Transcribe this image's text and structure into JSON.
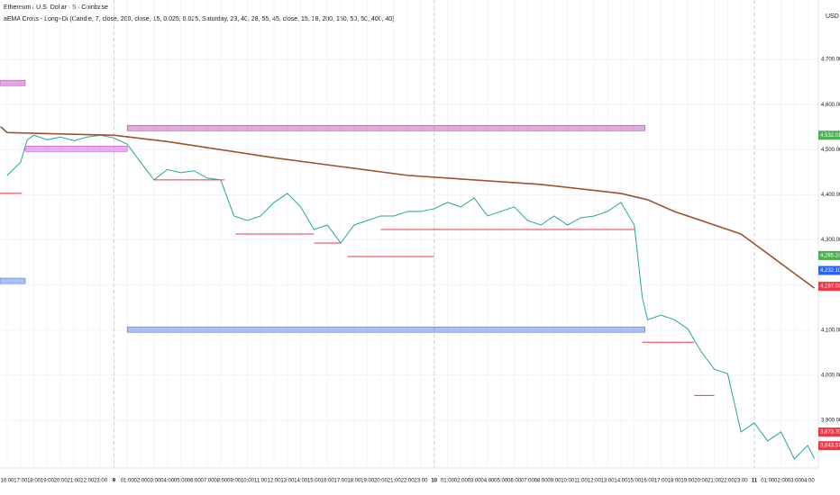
{
  "chart_data": {
    "type": "line",
    "title": "Ethereum / U.S. Dollar · 5 · Coinbase",
    "subtitle": "aEMA Cross - Long+Di (Candle, 7, close, 200, close, 15, 0.025, 0.025, Saturday, 23, 40, 28, 55, 45, close, 15, 18, 200, 150, 50, 50, 400, 40)",
    "currency": "USD",
    "grid": true,
    "xlim": [
      -0.54,
      60.8
    ],
    "ylim": [
      3794,
      4832
    ],
    "yticks": [
      {
        "value": 3900,
        "label": "3,900.00"
      },
      {
        "value": 4000,
        "label": "4,000.00"
      },
      {
        "value": 4100,
        "label": "4,100.00"
      },
      {
        "value": 4200,
        "label": "4,200.00"
      },
      {
        "value": 4300,
        "label": "4,300.00"
      },
      {
        "value": 4400,
        "label": "4,400.00"
      },
      {
        "value": 4500,
        "label": "4,500.00"
      },
      {
        "value": 4600,
        "label": "4,600.00"
      },
      {
        "value": 4700,
        "label": "4,700.00"
      }
    ],
    "xticks": [
      {
        "value": 0,
        "label": "16:00"
      },
      {
        "value": 1,
        "label": "17:00"
      },
      {
        "value": 2,
        "label": "18:00"
      },
      {
        "value": 3,
        "label": "19:00"
      },
      {
        "value": 4,
        "label": "20:00"
      },
      {
        "value": 5,
        "label": "21:00"
      },
      {
        "value": 6,
        "label": "22:00"
      },
      {
        "value": 7,
        "label": "23:00"
      },
      {
        "value": 8,
        "label": "9"
      },
      {
        "value": 9,
        "label": "01:00"
      },
      {
        "value": 10,
        "label": "02:00"
      },
      {
        "value": 11,
        "label": "03:00"
      },
      {
        "value": 12,
        "label": "04:00"
      },
      {
        "value": 13,
        "label": "05:00"
      },
      {
        "value": 14,
        "label": "06:00"
      },
      {
        "value": 15,
        "label": "07:00"
      },
      {
        "value": 16,
        "label": "08:00"
      },
      {
        "value": 17,
        "label": "09:00"
      },
      {
        "value": 18,
        "label": "10:00"
      },
      {
        "value": 19,
        "label": "11:00"
      },
      {
        "value": 20,
        "label": "12:00"
      },
      {
        "value": 21,
        "label": "13:00"
      },
      {
        "value": 22,
        "label": "14:00"
      },
      {
        "value": 23,
        "label": "15:00"
      },
      {
        "value": 24,
        "label": "16:00"
      },
      {
        "value": 25,
        "label": "17:00"
      },
      {
        "value": 26,
        "label": "18:00"
      },
      {
        "value": 27,
        "label": "19:00"
      },
      {
        "value": 28,
        "label": "20:00"
      },
      {
        "value": 29,
        "label": "21:00"
      },
      {
        "value": 30,
        "label": "22:00"
      },
      {
        "value": 31,
        "label": "23:00"
      },
      {
        "value": 32,
        "label": "10"
      },
      {
        "value": 33,
        "label": "01:00"
      },
      {
        "value": 34,
        "label": "02:00"
      },
      {
        "value": 35,
        "label": "03:00"
      },
      {
        "value": 36,
        "label": "04:00"
      },
      {
        "value": 37,
        "label": "05:00"
      },
      {
        "value": 38,
        "label": "06:00"
      },
      {
        "value": 39,
        "label": "07:00"
      },
      {
        "value": 40,
        "label": "08:00"
      },
      {
        "value": 41,
        "label": "09:00"
      },
      {
        "value": 42,
        "label": "10:00"
      },
      {
        "value": 43,
        "label": "11:00"
      },
      {
        "value": 44,
        "label": "12:00"
      },
      {
        "value": 45,
        "label": "13:00"
      },
      {
        "value": 46,
        "label": "14:00"
      },
      {
        "value": 47,
        "label": "15:00"
      },
      {
        "value": 48,
        "label": "16:00"
      },
      {
        "value": 49,
        "label": "17:00"
      },
      {
        "value": 50,
        "label": "18:00"
      },
      {
        "value": 51,
        "label": "19:00"
      },
      {
        "value": 52,
        "label": "20:00"
      },
      {
        "value": 53,
        "label": "21:00"
      },
      {
        "value": 54,
        "label": "22:00"
      },
      {
        "value": 55,
        "label": "23:00"
      },
      {
        "value": 56,
        "label": "11"
      },
      {
        "value": 57,
        "label": "01:00"
      },
      {
        "value": 58,
        "label": "02:00"
      },
      {
        "value": 59,
        "label": "03:00"
      },
      {
        "value": 60,
        "label": "04:00"
      }
    ],
    "series": [
      {
        "color": "#26a69a",
        "x": [
          0,
          1,
          1.5,
          2,
          3,
          4,
          5,
          6,
          7,
          8,
          9,
          10,
          11,
          12,
          13,
          14,
          15,
          16,
          17,
          18,
          19,
          20,
          21,
          22,
          23,
          24,
          25,
          26,
          27,
          28,
          29,
          30,
          31,
          32,
          33,
          34,
          35,
          36,
          37,
          38,
          39,
          40,
          41,
          42,
          43,
          44,
          45,
          46,
          47,
          47.6,
          48,
          49,
          50,
          51,
          52,
          53,
          54,
          55,
          56,
          57,
          58,
          59,
          60,
          60.5
        ],
        "values": [
          4443,
          4472,
          4522,
          4532,
          4522,
          4528,
          4520,
          4528,
          4532,
          4526,
          4512,
          4472,
          4433,
          4456,
          4449,
          4453,
          4437,
          4433,
          4353,
          4343,
          4353,
          4383,
          4403,
          4373,
          4323,
          4333,
          4293,
          4333,
          4343,
          4353,
          4353,
          4363,
          4363,
          4369,
          4383,
          4373,
          4393,
          4353,
          4363,
          4373,
          4343,
          4333,
          4353,
          4333,
          4349,
          4353,
          4363,
          4383,
          4333,
          4173,
          4123,
          4133,
          4123,
          4103,
          4053,
          4013,
          4003,
          3874,
          3894,
          3854,
          3874,
          3814,
          3844,
          3815
        ]
      },
      {
        "color": "#a0522d",
        "x": [
          -0.5,
          0,
          8,
          12,
          20,
          30,
          40,
          46,
          48,
          50,
          55,
          60.5
        ],
        "values": [
          4551,
          4538,
          4532,
          4518,
          4482,
          4443,
          4423,
          4403,
          4389,
          4363,
          4313,
          4193
        ]
      }
    ],
    "zones": [
      {
        "value": 4648,
        "x": [
          -0.54,
          1.35
        ],
        "color": "#c040c0"
      },
      {
        "value": 4548,
        "x": [
          9,
          47.8
        ],
        "color": "#c040c0"
      },
      {
        "value": 4502,
        "x": [
          1.35,
          9
        ],
        "color": "#d050d0"
      },
      {
        "value": 4209,
        "x": [
          -0.54,
          1.35
        ],
        "color": "#4477ee"
      },
      {
        "value": 4101,
        "x": [
          9,
          47.8
        ],
        "color": "#4477ee"
      }
    ],
    "stops": [
      {
        "value": 4403,
        "x": [
          -0.54,
          1.1
        ],
        "color": "#f23645"
      },
      {
        "value": 4433,
        "x": [
          11,
          16.3
        ],
        "color": "#f23645"
      },
      {
        "value": 4313,
        "x": [
          17.1,
          23
        ],
        "color": "#f23645"
      },
      {
        "value": 4293,
        "x": [
          23,
          25
        ],
        "color": "#f23645"
      },
      {
        "value": 4263,
        "x": [
          25.5,
          32
        ],
        "color": "#f23645"
      },
      {
        "value": 4323,
        "x": [
          28,
          47
        ],
        "color": "#f23645"
      },
      {
        "value": 4073,
        "x": [
          47.6,
          51.5
        ],
        "color": "#f23645"
      },
      {
        "value": 3955,
        "x": [
          51.5,
          53
        ],
        "color": "#f23645"
      }
    ],
    "price_tags": [
      {
        "value": 4532.01,
        "label": "4,532.01",
        "color": "#4caf50"
      },
      {
        "value": 4265.24,
        "label": "4,265.24",
        "color": "#4caf50"
      },
      {
        "value": 4232.1,
        "label": "4,232.10",
        "color": "#2962ff"
      },
      {
        "value": 4197.03,
        "label": "4,197.03",
        "color": "#f23645"
      },
      {
        "value": 3873.7,
        "label": "3,873.70",
        "color": "#f23645"
      },
      {
        "value": 3843.57,
        "label": "3,843.57",
        "color": "#f23645"
      }
    ]
  }
}
